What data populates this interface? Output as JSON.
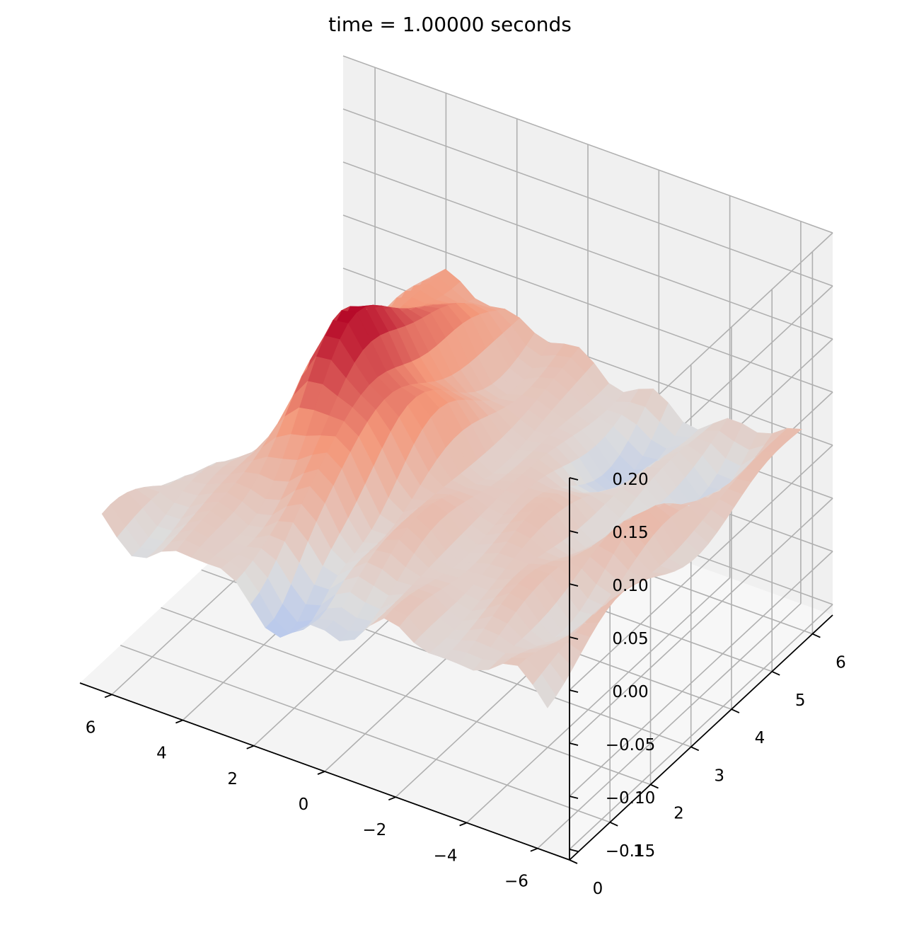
{
  "chart_data": {
    "type": "surface3d",
    "title": "time = 1.00000 seconds",
    "colormap": "coolwarm",
    "colors": {
      "cold": "#3b4cc0",
      "mid": "#dddddd",
      "hot": "#b40426"
    },
    "x_ticks": [
      "−6",
      "−4",
      "−2",
      "0",
      "2",
      "4",
      "6"
    ],
    "x_tick_values": [
      -6,
      -4,
      -2,
      0,
      2,
      4,
      6
    ],
    "y_ticks": [
      "0",
      "1",
      "2",
      "3",
      "4",
      "5",
      "6"
    ],
    "y_tick_values": [
      0,
      1,
      2,
      3,
      4,
      5,
      6
    ],
    "z_ticks": [
      "−0.15",
      "−0.10",
      "−0.05",
      "0.00",
      "0.05",
      "0.10",
      "0.15",
      "0.20"
    ],
    "z_tick_values": [
      -0.15,
      -0.1,
      -0.05,
      0.0,
      0.05,
      0.1,
      0.15,
      0.2
    ],
    "xlim": [
      -6.9,
      6.9
    ],
    "ylim": [
      0,
      6.5
    ],
    "zlim": [
      -0.16,
      0.2
    ],
    "surface_range": {
      "x": [
        -6.28,
        6.28
      ],
      "y": [
        0,
        6.28
      ],
      "z": [
        -0.155,
        0.118
      ]
    },
    "grid": true,
    "xlabel": "",
    "ylabel": "",
    "zlabel": ""
  }
}
